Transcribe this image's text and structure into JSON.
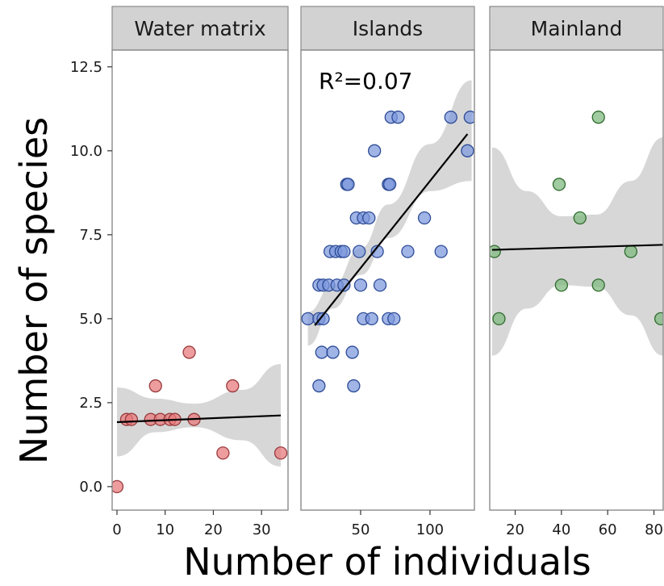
{
  "chart_data": {
    "type": "scatter",
    "ylabel": "Number of species",
    "xlabel": "Number of individuals",
    "ylim": [
      -0.7,
      13
    ],
    "yticks": [
      "0.0",
      "2.5",
      "5.0",
      "7.5",
      "10.0",
      "12.5"
    ],
    "ytick_values": [
      0,
      2.5,
      5,
      7.5,
      10,
      12.5
    ],
    "grid": false,
    "panels": [
      {
        "name": "Water matrix",
        "color": "#e8777a",
        "stroke": "#9a3a3c",
        "xlim": [
          -1,
          35.5
        ],
        "xticks": [
          "0",
          "10",
          "20",
          "30"
        ],
        "xtick_values": [
          0,
          10,
          20,
          30
        ],
        "annotation": "",
        "points": [
          {
            "x": 0,
            "y": 0
          },
          {
            "x": 2,
            "y": 2
          },
          {
            "x": 3,
            "y": 2
          },
          {
            "x": 7,
            "y": 2
          },
          {
            "x": 8,
            "y": 3
          },
          {
            "x": 9,
            "y": 2
          },
          {
            "x": 11,
            "y": 2
          },
          {
            "x": 12,
            "y": 2
          },
          {
            "x": 15,
            "y": 4
          },
          {
            "x": 16,
            "y": 2
          },
          {
            "x": 22,
            "y": 1
          },
          {
            "x": 24,
            "y": 3
          },
          {
            "x": 34,
            "y": 1
          }
        ],
        "fit": {
          "x0": 0,
          "y0": 1.92,
          "x1": 34,
          "y1": 2.12
        },
        "ci_upper": [
          [
            0,
            2.95
          ],
          [
            8,
            2.62
          ],
          [
            16,
            2.47
          ],
          [
            26,
            2.88
          ],
          [
            34,
            3.65
          ]
        ],
        "ci_lower": [
          [
            0,
            0.9
          ],
          [
            8,
            1.62
          ],
          [
            16,
            1.77
          ],
          [
            26,
            1.38
          ],
          [
            34,
            0.6
          ]
        ]
      },
      {
        "name": "Islands",
        "color": "#7b97dd",
        "stroke": "#2d4b96",
        "xlim": [
          7,
          132
        ],
        "xticks": [
          "50",
          "100"
        ],
        "xtick_values": [
          50,
          100
        ],
        "annotation": "R²=0.07",
        "points": [
          {
            "x": 12,
            "y": 5
          },
          {
            "x": 20,
            "y": 5
          },
          {
            "x": 23,
            "y": 5
          },
          {
            "x": 20,
            "y": 3
          },
          {
            "x": 45,
            "y": 3
          },
          {
            "x": 22,
            "y": 4
          },
          {
            "x": 30,
            "y": 4
          },
          {
            "x": 44,
            "y": 4
          },
          {
            "x": 20,
            "y": 6
          },
          {
            "x": 23,
            "y": 6
          },
          {
            "x": 27,
            "y": 6
          },
          {
            "x": 33,
            "y": 6
          },
          {
            "x": 50,
            "y": 6
          },
          {
            "x": 64,
            "y": 6
          },
          {
            "x": 28,
            "y": 7
          },
          {
            "x": 32,
            "y": 7
          },
          {
            "x": 36,
            "y": 7
          },
          {
            "x": 49,
            "y": 7
          },
          {
            "x": 62,
            "y": 7
          },
          {
            "x": 84,
            "y": 7
          },
          {
            "x": 108,
            "y": 7
          },
          {
            "x": 47,
            "y": 8
          },
          {
            "x": 52,
            "y": 8
          },
          {
            "x": 56,
            "y": 8
          },
          {
            "x": 96,
            "y": 8
          },
          {
            "x": 40,
            "y": 9
          },
          {
            "x": 41,
            "y": 9
          },
          {
            "x": 70,
            "y": 9
          },
          {
            "x": 71,
            "y": 9
          },
          {
            "x": 60,
            "y": 10
          },
          {
            "x": 127,
            "y": 10
          },
          {
            "x": 72,
            "y": 11
          },
          {
            "x": 77,
            "y": 11
          },
          {
            "x": 115,
            "y": 11
          },
          {
            "x": 129,
            "y": 11
          },
          {
            "x": 52,
            "y": 5
          },
          {
            "x": 58,
            "y": 5
          },
          {
            "x": 70,
            "y": 5
          },
          {
            "x": 74,
            "y": 5
          },
          {
            "x": 38,
            "y": 6
          },
          {
            "x": 38,
            "y": 7
          }
        ],
        "fit": {
          "x0": 17,
          "y0": 4.8,
          "x1": 127,
          "y1": 10.5
        },
        "ci_upper": [
          [
            12,
            5.2
          ],
          [
            30,
            6.0
          ],
          [
            50,
            7.1
          ],
          [
            70,
            8.4
          ],
          [
            100,
            10.2
          ],
          [
            130,
            12.1
          ]
        ],
        "ci_lower": [
          [
            12,
            4.2
          ],
          [
            30,
            5.3
          ],
          [
            50,
            6.3
          ],
          [
            70,
            7.4
          ],
          [
            100,
            8.8
          ],
          [
            130,
            9.1
          ]
        ]
      },
      {
        "name": "Mainland",
        "color": "#7db77b",
        "stroke": "#2f6b2d",
        "xlim": [
          9,
          84
        ],
        "xticks": [
          "20",
          "40",
          "60",
          "80"
        ],
        "xtick_values": [
          20,
          40,
          60,
          80
        ],
        "annotation": "",
        "points": [
          {
            "x": 11,
            "y": 7
          },
          {
            "x": 13,
            "y": 5
          },
          {
            "x": 39,
            "y": 9
          },
          {
            "x": 40,
            "y": 6
          },
          {
            "x": 48,
            "y": 8
          },
          {
            "x": 56,
            "y": 11
          },
          {
            "x": 56,
            "y": 6
          },
          {
            "x": 70,
            "y": 7
          },
          {
            "x": 83,
            "y": 5
          }
        ],
        "fit": {
          "x0": 10,
          "y0": 7.05,
          "x1": 84,
          "y1": 7.2
        },
        "ci_upper": [
          [
            10,
            10.1
          ],
          [
            25,
            8.8
          ],
          [
            40,
            8.05
          ],
          [
            55,
            8.1
          ],
          [
            70,
            9.1
          ],
          [
            84,
            10.4
          ]
        ],
        "ci_lower": [
          [
            10,
            3.9
          ],
          [
            25,
            5.3
          ],
          [
            40,
            6.0
          ],
          [
            55,
            5.95
          ],
          [
            70,
            5.1
          ],
          [
            84,
            3.9
          ]
        ]
      }
    ]
  }
}
